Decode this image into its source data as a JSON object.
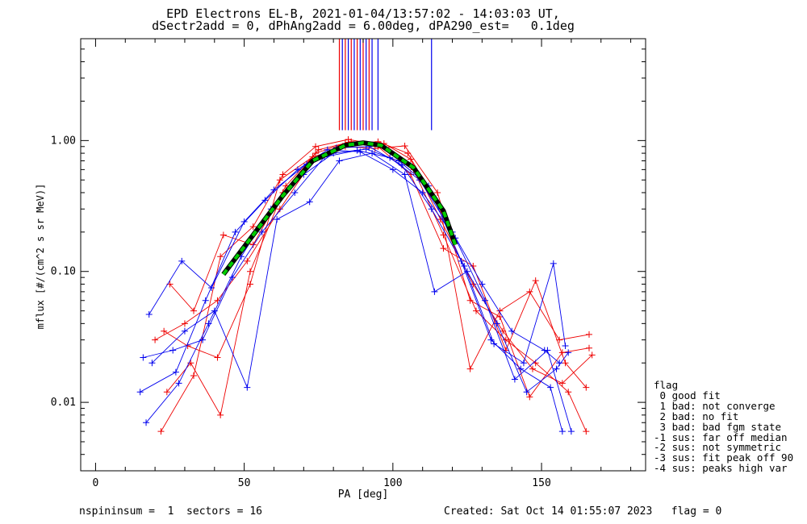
{
  "header": {
    "title_line1": "EPD Electrons EL-B, 2021-01-04/13:57:02 - 14:03:03 UT,",
    "title_line2": "dSectr2add = 0, dPhAng2add = 6.00deg, dPA290_est=   0.1deg"
  },
  "footer": {
    "left": "nspininsum =  1  sectors = 16",
    "right": "Created: Sat Oct 14 01:55:07 2023   flag = 0"
  },
  "legend": {
    "title": "flag",
    "items": [
      " 0 good fit",
      " 1 bad: not converge",
      " 2 bad: no fit",
      " 3 bad: bad fgm state",
      "-1 sus: far off median",
      "-2 sus: not symmetric",
      "-3 sus: fit peak off 90",
      "-4 sus: peaks high var"
    ]
  },
  "colors": {
    "red_series": "#ee0000",
    "blue_series": "#0000ee",
    "fit_line": "#00cc00",
    "fit_line_outline": "#000000"
  },
  "chart_data": {
    "type": "line",
    "title": "EPD Electrons EL-B, 2021-01-04/13:57:02 - 14:03:03 UT,",
    "subtitle": "dSectr2add = 0, dPhAng2add = 6.00deg, dPA290_est=   0.1deg",
    "xlabel": "PA [deg]",
    "ylabel": "mflux [#/(cm^2 s sr MeV)]",
    "xlim": [
      -5,
      185
    ],
    "ylim": [
      0.003,
      6.0
    ],
    "yscale": "log",
    "xticks": [
      0,
      50,
      100,
      150
    ],
    "xtick_labels": [
      "0",
      "50",
      "100",
      "150"
    ],
    "yticks": [
      0.01,
      0.1,
      1.0
    ],
    "ytick_labels": [
      "0.01",
      "0.10",
      "1.00"
    ],
    "grid": false,
    "legend_position": "right",
    "fit_curve": {
      "color": "green-dashed",
      "x": [
        43,
        53,
        63,
        73,
        84,
        90,
        96,
        107,
        117,
        121
      ],
      "y": [
        0.095,
        0.19,
        0.38,
        0.7,
        0.92,
        0.96,
        0.92,
        0.62,
        0.29,
        0.16
      ]
    },
    "red_series": [
      {
        "x": [
          22,
          33,
          42,
          53,
          63,
          74,
          85,
          96,
          107,
          117,
          128,
          138,
          148,
          159,
          165
        ],
        "y": [
          0.006,
          0.016,
          0.13,
          0.22,
          0.55,
          0.9,
          1.02,
          0.92,
          0.6,
          0.19,
          0.05,
          0.03,
          0.02,
          0.012,
          0.006
        ]
      },
      {
        "x": [
          25,
          33,
          43,
          53,
          64,
          75,
          86,
          97,
          106,
          116,
          127,
          137,
          147,
          157,
          167
        ],
        "y": [
          0.08,
          0.05,
          0.19,
          0.16,
          0.45,
          0.85,
          0.98,
          0.95,
          0.72,
          0.25,
          0.08,
          0.035,
          0.018,
          0.014,
          0.023
        ]
      },
      {
        "x": [
          20,
          30,
          41,
          51,
          62,
          73,
          84,
          95,
          105,
          116,
          126,
          136,
          146,
          156,
          166
        ],
        "y": [
          0.03,
          0.04,
          0.06,
          0.12,
          0.3,
          0.7,
          0.95,
          0.98,
          0.8,
          0.3,
          0.018,
          0.05,
          0.07,
          0.03,
          0.033
        ]
      },
      {
        "x": [
          24,
          32,
          42,
          52,
          63,
          74,
          85,
          95,
          106,
          117,
          127,
          138,
          148,
          158,
          165
        ],
        "y": [
          0.012,
          0.02,
          0.008,
          0.1,
          0.4,
          0.8,
          0.97,
          0.9,
          0.55,
          0.15,
          0.11,
          0.025,
          0.085,
          0.02,
          0.013
        ]
      },
      {
        "x": [
          23,
          31,
          41,
          52,
          62,
          73,
          84,
          94,
          104,
          115,
          126,
          136,
          146,
          157,
          166
        ],
        "y": [
          0.035,
          0.027,
          0.022,
          0.08,
          0.5,
          0.75,
          0.9,
          0.87,
          0.91,
          0.4,
          0.06,
          0.045,
          0.011,
          0.024,
          0.026
        ]
      }
    ],
    "blue_series": [
      {
        "x": [
          15,
          27,
          37,
          47,
          57,
          68,
          78,
          89,
          100,
          110,
          121,
          131,
          141,
          152,
          160
        ],
        "y": [
          0.012,
          0.017,
          0.06,
          0.2,
          0.35,
          0.6,
          0.85,
          0.82,
          0.6,
          0.4,
          0.18,
          0.06,
          0.015,
          0.025,
          0.006
        ]
      },
      {
        "x": [
          17,
          28,
          38,
          49,
          59,
          70,
          80,
          91,
          102,
          112,
          123,
          133,
          143,
          153,
          157
        ],
        "y": [
          0.007,
          0.014,
          0.04,
          0.13,
          0.3,
          0.55,
          0.8,
          0.86,
          0.7,
          0.45,
          0.12,
          0.03,
          0.018,
          0.013,
          0.006
        ]
      },
      {
        "x": [
          18,
          29,
          39,
          50,
          60,
          71,
          81,
          92,
          103,
          113,
          124,
          134,
          144,
          154,
          158
        ],
        "y": [
          0.047,
          0.12,
          0.075,
          0.24,
          0.42,
          0.66,
          0.88,
          0.9,
          0.65,
          0.3,
          0.11,
          0.028,
          0.02,
          0.115,
          0.027
        ]
      },
      {
        "x": [
          16,
          26,
          36,
          46,
          56,
          67,
          77,
          88,
          99,
          109,
          120,
          130,
          140,
          151,
          156
        ],
        "y": [
          0.022,
          0.025,
          0.03,
          0.09,
          0.2,
          0.4,
          0.75,
          0.84,
          0.74,
          0.5,
          0.2,
          0.08,
          0.035,
          0.025,
          0.02
        ]
      },
      {
        "x": [
          19,
          30,
          40,
          51,
          61,
          72,
          82,
          93,
          104,
          114,
          125,
          135,
          145,
          155,
          159
        ],
        "y": [
          0.02,
          0.035,
          0.05,
          0.013,
          0.25,
          0.34,
          0.7,
          0.8,
          0.55,
          0.07,
          0.1,
          0.04,
          0.012,
          0.018,
          0.024
        ]
      }
    ],
    "vertical_markers": {
      "red_x": [
        82,
        84,
        86,
        88,
        90,
        92
      ],
      "blue_x": [
        83,
        85,
        87,
        89,
        91,
        93,
        95,
        113
      ]
    }
  }
}
